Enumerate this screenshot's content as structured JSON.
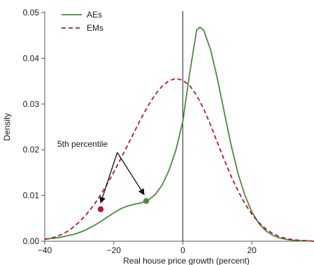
{
  "chart_data": {
    "type": "line",
    "xlabel": "Real house price growth (percent)",
    "ylabel": "Density",
    "xlim": [
      -40,
      38
    ],
    "ylim": [
      0,
      0.05
    ],
    "xticks": [
      -40,
      -20,
      0,
      20
    ],
    "xtick_labels": [
      "−40",
      "−20",
      "0",
      "20"
    ],
    "yticks": [
      0,
      0.01,
      0.02,
      0.03,
      0.04,
      0.05
    ],
    "ytick_labels": [
      "0.00",
      "0.01",
      "0.02",
      "0.03",
      "0.04",
      "0.05"
    ],
    "legend_position": "top-left",
    "grid": false,
    "series": [
      {
        "name": "AEs",
        "color": "#4a8a3a",
        "style": "solid",
        "x": [
          -40,
          -38,
          -36,
          -34,
          -32,
          -30,
          -28,
          -26,
          -24,
          -22,
          -20,
          -18,
          -16,
          -14,
          -12,
          -10,
          -8,
          -6,
          -4,
          -2,
          0,
          2,
          4,
          5,
          6,
          8,
          10,
          12,
          14,
          16,
          18,
          20,
          22,
          24,
          26,
          28,
          30,
          32,
          34,
          36,
          38
        ],
        "y": [
          0.0005,
          0.0006,
          0.0008,
          0.0011,
          0.0014,
          0.0019,
          0.0025,
          0.0033,
          0.0042,
          0.0052,
          0.0062,
          0.0071,
          0.0077,
          0.0081,
          0.0084,
          0.009,
          0.0102,
          0.0123,
          0.0155,
          0.02,
          0.0262,
          0.0368,
          0.0462,
          0.0468,
          0.0462,
          0.042,
          0.0356,
          0.0282,
          0.021,
          0.0148,
          0.01,
          0.0064,
          0.0039,
          0.0023,
          0.0013,
          0.0007,
          0.0004,
          0.0002,
          0.0001,
          0.0001,
          0.0
        ]
      },
      {
        "name": "EMs",
        "color": "#b2182b",
        "style": "dashed",
        "x": [
          -40,
          -38,
          -36,
          -34,
          -32,
          -30,
          -28,
          -26,
          -24,
          -22,
          -20,
          -18,
          -16,
          -14,
          -12,
          -10,
          -8,
          -6,
          -4,
          -2,
          0,
          2,
          4,
          6,
          8,
          10,
          12,
          14,
          16,
          18,
          20,
          22,
          24,
          26,
          28,
          30,
          32,
          34,
          36,
          38
        ],
        "y": [
          0.0004,
          0.0007,
          0.0012,
          0.0019,
          0.0029,
          0.0042,
          0.0058,
          0.0077,
          0.0099,
          0.0124,
          0.0151,
          0.018,
          0.021,
          0.024,
          0.027,
          0.0297,
          0.0321,
          0.0339,
          0.0351,
          0.0356,
          0.0352,
          0.034,
          0.0319,
          0.029,
          0.0255,
          0.0216,
          0.0178,
          0.0142,
          0.011,
          0.0082,
          0.0059,
          0.0041,
          0.0027,
          0.0017,
          0.001,
          0.0006,
          0.0003,
          0.0002,
          0.0001,
          0.0
        ]
      }
    ],
    "markers": [
      {
        "series": "EMs",
        "x": -23.8,
        "y": 0.007,
        "color": "#b2182b"
      },
      {
        "series": "AEs",
        "x": -10.6,
        "y": 0.0088,
        "color": "#4a8a3a"
      }
    ],
    "annotation": {
      "text": "5th percentile"
    }
  }
}
